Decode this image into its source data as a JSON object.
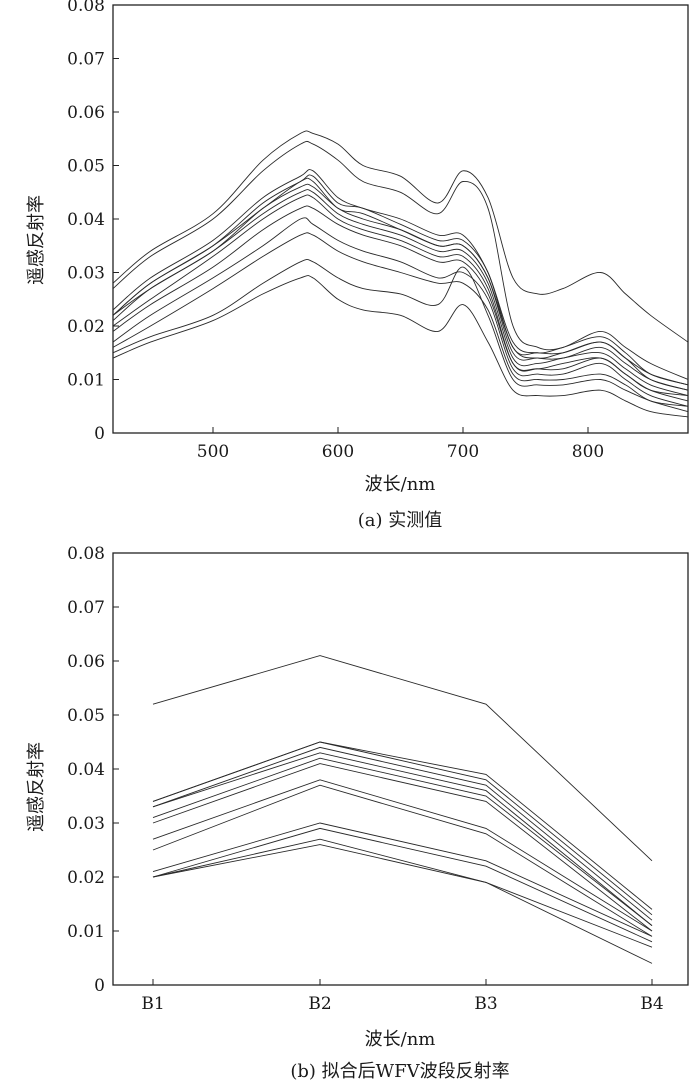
{
  "chart_data": [
    {
      "type": "line",
      "caption": "(a) 实测值",
      "xlabel": "波长/nm",
      "ylabel": "遥感反射率",
      "xlim": [
        420,
        880
      ],
      "ylim": [
        0,
        0.08
      ],
      "xticks": [
        "500",
        "600",
        "700",
        "800"
      ],
      "xtick_values": [
        500,
        600,
        700,
        800
      ],
      "yticks": [
        "0",
        "0.01",
        "0.02",
        "0.03",
        "0.04",
        "0.05",
        "0.06",
        "0.07",
        "0.08"
      ],
      "ytick_values": [
        0,
        0.01,
        0.02,
        0.03,
        0.04,
        0.05,
        0.06,
        0.07,
        0.08
      ],
      "x": [
        420,
        450,
        500,
        540,
        570,
        580,
        600,
        620,
        650,
        680,
        700,
        720,
        740,
        760,
        780,
        810,
        830,
        850,
        880
      ],
      "series": [
        {
          "values": [
            0.028,
            0.034,
            0.041,
            0.051,
            0.056,
            0.056,
            0.054,
            0.05,
            0.048,
            0.043,
            0.049,
            0.044,
            0.029,
            0.026,
            0.027,
            0.03,
            0.026,
            0.022,
            0.017
          ]
        },
        {
          "values": [
            0.027,
            0.033,
            0.04,
            0.049,
            0.054,
            0.054,
            0.051,
            0.047,
            0.045,
            0.041,
            0.047,
            0.042,
            0.02,
            0.016,
            0.016,
            0.019,
            0.016,
            0.013,
            0.01
          ]
        },
        {
          "values": [
            0.023,
            0.029,
            0.036,
            0.044,
            0.048,
            0.049,
            0.044,
            0.042,
            0.04,
            0.037,
            0.037,
            0.03,
            0.017,
            0.015,
            0.016,
            0.018,
            0.015,
            0.011,
            0.009
          ]
        },
        {
          "values": [
            0.022,
            0.028,
            0.035,
            0.043,
            0.047,
            0.048,
            0.043,
            0.042,
            0.039,
            0.036,
            0.036,
            0.03,
            0.016,
            0.015,
            0.015,
            0.017,
            0.014,
            0.011,
            0.009
          ]
        },
        {
          "values": [
            0.022,
            0.028,
            0.035,
            0.042,
            0.047,
            0.047,
            0.042,
            0.041,
            0.038,
            0.035,
            0.035,
            0.029,
            0.016,
            0.014,
            0.015,
            0.017,
            0.014,
            0.01,
            0.008
          ]
        },
        {
          "values": [
            0.021,
            0.027,
            0.034,
            0.042,
            0.046,
            0.046,
            0.042,
            0.04,
            0.038,
            0.035,
            0.035,
            0.029,
            0.015,
            0.014,
            0.014,
            0.016,
            0.013,
            0.01,
            0.008
          ]
        },
        {
          "values": [
            0.022,
            0.027,
            0.034,
            0.041,
            0.045,
            0.045,
            0.041,
            0.039,
            0.037,
            0.034,
            0.034,
            0.028,
            0.014,
            0.013,
            0.014,
            0.015,
            0.012,
            0.009,
            0.007
          ]
        },
        {
          "values": [
            0.02,
            0.025,
            0.033,
            0.04,
            0.044,
            0.044,
            0.04,
            0.038,
            0.036,
            0.033,
            0.033,
            0.027,
            0.013,
            0.012,
            0.013,
            0.014,
            0.011,
            0.008,
            0.007
          ]
        },
        {
          "values": [
            0.019,
            0.024,
            0.031,
            0.038,
            0.042,
            0.042,
            0.039,
            0.037,
            0.035,
            0.032,
            0.032,
            0.026,
            0.013,
            0.012,
            0.012,
            0.014,
            0.011,
            0.008,
            0.006
          ]
        },
        {
          "values": [
            0.017,
            0.022,
            0.029,
            0.035,
            0.04,
            0.039,
            0.036,
            0.034,
            0.032,
            0.029,
            0.03,
            0.025,
            0.012,
            0.011,
            0.011,
            0.013,
            0.01,
            0.007,
            0.005
          ]
        },
        {
          "values": [
            0.016,
            0.02,
            0.027,
            0.033,
            0.037,
            0.037,
            0.034,
            0.032,
            0.03,
            0.028,
            0.028,
            0.023,
            0.011,
            0.01,
            0.01,
            0.011,
            0.009,
            0.006,
            0.005
          ]
        },
        {
          "values": [
            0.015,
            0.018,
            0.022,
            0.028,
            0.032,
            0.032,
            0.029,
            0.027,
            0.026,
            0.024,
            0.031,
            0.022,
            0.01,
            0.009,
            0.009,
            0.01,
            0.008,
            0.006,
            0.004
          ]
        },
        {
          "values": [
            0.014,
            0.017,
            0.021,
            0.026,
            0.029,
            0.029,
            0.025,
            0.023,
            0.022,
            0.019,
            0.024,
            0.017,
            0.008,
            0.007,
            0.007,
            0.008,
            0.006,
            0.004,
            0.003
          ]
        }
      ]
    },
    {
      "type": "line",
      "caption": "(b) 拟合后WFV波段反射率",
      "xlabel": "波长/nm",
      "ylabel": "遥感反射率",
      "categories": [
        "B1",
        "B2",
        "B3",
        "B4"
      ],
      "ylim": [
        0,
        0.08
      ],
      "yticks": [
        "0",
        "0.01",
        "0.02",
        "0.03",
        "0.04",
        "0.05",
        "0.06",
        "0.07",
        "0.08"
      ],
      "ytick_values": [
        0,
        0.01,
        0.02,
        0.03,
        0.04,
        0.05,
        0.06,
        0.07,
        0.08
      ],
      "series": [
        {
          "values": [
            0.052,
            0.061,
            0.052,
            0.023
          ]
        },
        {
          "values": [
            0.034,
            0.045,
            0.039,
            0.014
          ]
        },
        {
          "values": [
            0.034,
            0.045,
            0.038,
            0.013
          ]
        },
        {
          "values": [
            0.033,
            0.044,
            0.037,
            0.012
          ]
        },
        {
          "values": [
            0.033,
            0.043,
            0.036,
            0.011
          ]
        },
        {
          "values": [
            0.031,
            0.042,
            0.035,
            0.011
          ]
        },
        {
          "values": [
            0.03,
            0.041,
            0.034,
            0.01
          ]
        },
        {
          "values": [
            0.027,
            0.038,
            0.029,
            0.01
          ]
        },
        {
          "values": [
            0.025,
            0.037,
            0.028,
            0.009
          ]
        },
        {
          "values": [
            0.021,
            0.03,
            0.023,
            0.009
          ]
        },
        {
          "values": [
            0.02,
            0.029,
            0.022,
            0.008
          ]
        },
        {
          "values": [
            0.02,
            0.027,
            0.019,
            0.007
          ]
        },
        {
          "values": [
            0.02,
            0.026,
            0.019,
            0.004
          ]
        }
      ]
    }
  ]
}
